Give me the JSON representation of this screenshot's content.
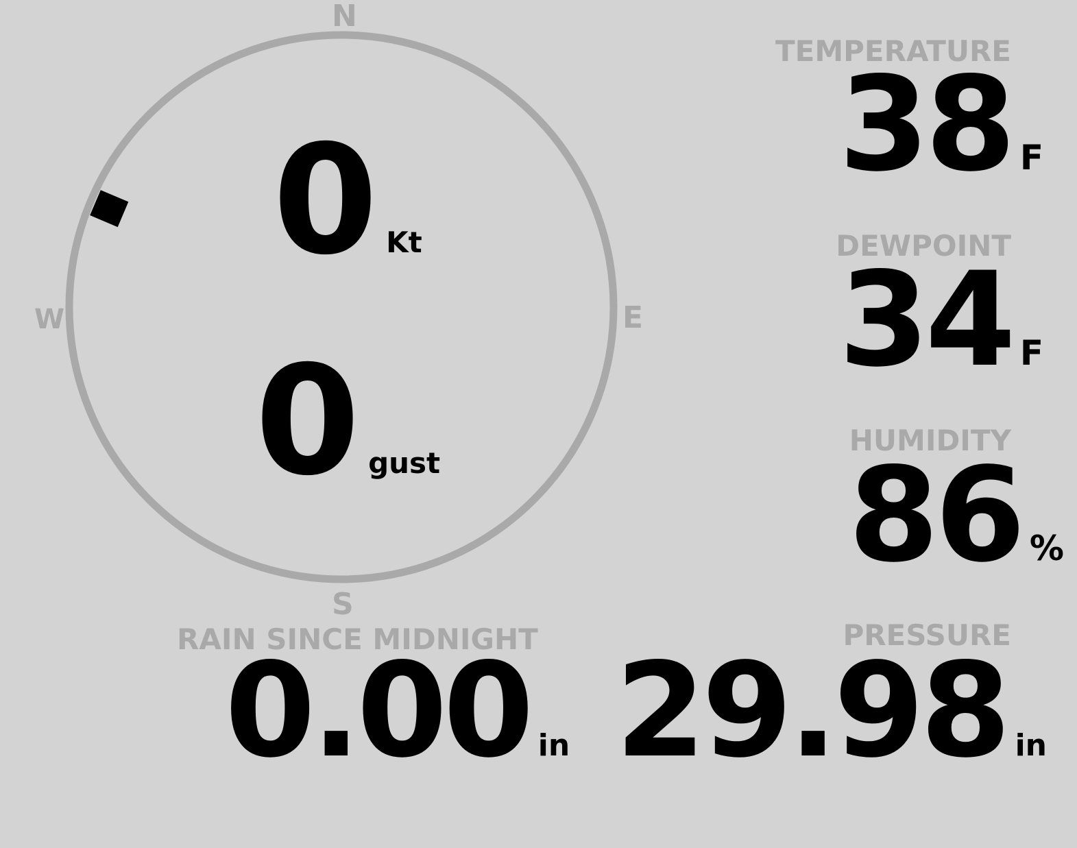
{
  "colors": {
    "background": "#d3d3d3",
    "label": "#a9a9a9",
    "value": "#000000"
  },
  "compass": {
    "n": "N",
    "e": "E",
    "s": "S",
    "w": "W",
    "wind_direction_deg": 293,
    "speed": {
      "value": "0",
      "unit": "Kt"
    },
    "gust": {
      "value": "0",
      "unit": "gust"
    }
  },
  "temperature": {
    "label": "TEMPERATURE",
    "value": "38",
    "unit": "F"
  },
  "dewpoint": {
    "label": "DEWPOINT",
    "value": "34",
    "unit": "F"
  },
  "humidity": {
    "label": "HUMIDITY",
    "value": "86",
    "unit": "%"
  },
  "rain": {
    "label": "RAIN SINCE MIDNIGHT",
    "value": "0.00",
    "unit": "in"
  },
  "pressure": {
    "label": "PRESSURE",
    "value": "29.98",
    "unit": "in"
  }
}
